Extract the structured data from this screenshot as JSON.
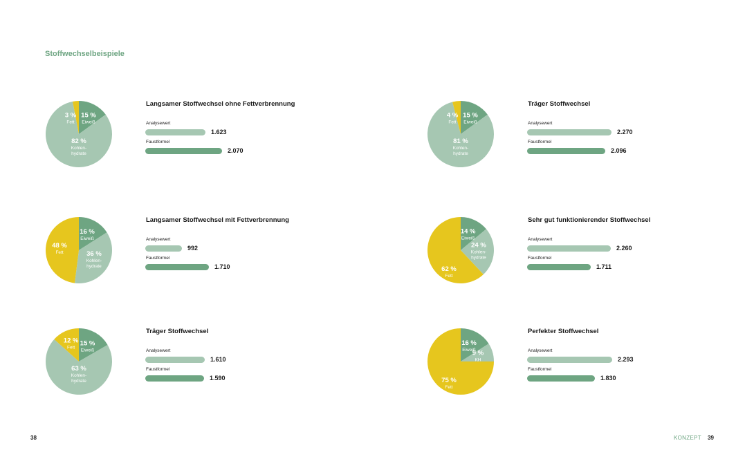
{
  "page": {
    "title": "Stoffwechselbeispiele",
    "folio_left": "38",
    "folio_right": "39",
    "section_label": "KONZEPT"
  },
  "colors": {
    "eiweiss": "#6ea582",
    "kohlenhydrate": "#a6c7b2",
    "fett": "#e6c61e",
    "analysewert_bar": "#a6c7b2",
    "faustformel_bar": "#6ea582",
    "title": "#6ea582"
  },
  "chart_data": [
    {
      "type": "pie",
      "title": "Langsamer Stoffwechsel ohne Fettverbrennung",
      "slices": [
        {
          "key": "eiweiss",
          "pct": 15,
          "value_label": "15 %",
          "name_lines": [
            "Eiweiß"
          ]
        },
        {
          "key": "kohlenhydrate",
          "pct": 82,
          "value_label": "82 %",
          "name_lines": [
            "Kohlen-",
            "hydrate"
          ]
        },
        {
          "key": "fett",
          "pct": 3,
          "value_label": "3 %",
          "name_lines": [
            "Fett"
          ]
        }
      ],
      "bars": [
        {
          "label": "Analysewert",
          "value": 1623,
          "value_label": "1.623"
        },
        {
          "label": "Faustformel",
          "value": 2070,
          "value_label": "2.070"
        }
      ]
    },
    {
      "type": "pie",
      "title": "Langsamer Stoffwechsel mit Fettverbrennung",
      "slices": [
        {
          "key": "eiweiss",
          "pct": 16,
          "value_label": "16 %",
          "name_lines": [
            "Eiweiß"
          ]
        },
        {
          "key": "kohlenhydrate",
          "pct": 36,
          "value_label": "36 %",
          "name_lines": [
            "Kohlen-",
            "hydrate"
          ]
        },
        {
          "key": "fett",
          "pct": 48,
          "value_label": "48 %",
          "name_lines": [
            "Fett"
          ]
        }
      ],
      "bars": [
        {
          "label": "Analysewert",
          "value": 992,
          "value_label": "992"
        },
        {
          "label": "Faustformel",
          "value": 1710,
          "value_label": "1.710"
        }
      ]
    },
    {
      "type": "pie",
      "title": "Träger Stoffwechsel",
      "slices": [
        {
          "key": "eiweiss",
          "pct": 15,
          "value_label": "15 %",
          "name_lines": [
            "Eiweiß"
          ]
        },
        {
          "key": "kohlenhydrate",
          "pct": 63,
          "value_label": "63 %",
          "name_lines": [
            "Kohlen-",
            "hydrate"
          ]
        },
        {
          "key": "fett",
          "pct": 12,
          "value_label": "12 %",
          "name_lines": [
            "Fett"
          ]
        }
      ],
      "bars": [
        {
          "label": "Analysewert",
          "value": 1610,
          "value_label": "1.610"
        },
        {
          "label": "Faustformel",
          "value": 1590,
          "value_label": "1.590"
        }
      ]
    },
    {
      "type": "pie",
      "title": "Träger Stoffwechsel",
      "slices": [
        {
          "key": "eiweiss",
          "pct": 15,
          "value_label": "15 %",
          "name_lines": [
            "Eiweiß"
          ]
        },
        {
          "key": "kohlenhydrate",
          "pct": 81,
          "value_label": "81 %",
          "name_lines": [
            "Kohlen-",
            "hydrate"
          ]
        },
        {
          "key": "fett",
          "pct": 4,
          "value_label": "4 %",
          "name_lines": [
            "Fett"
          ]
        }
      ],
      "bars": [
        {
          "label": "Analysewert",
          "value": 2270,
          "value_label": "2.270"
        },
        {
          "label": "Faustformel",
          "value": 2096,
          "value_label": "2.096"
        }
      ]
    },
    {
      "type": "pie",
      "title": "Sehr gut funktionierender Stoffwechsel",
      "slices": [
        {
          "key": "eiweiss",
          "pct": 14,
          "value_label": "14 %",
          "name_lines": [
            "Eiweiß"
          ]
        },
        {
          "key": "kohlenhydrate",
          "pct": 24,
          "value_label": "24 %",
          "name_lines": [
            "Kohlen-",
            "hydrate"
          ]
        },
        {
          "key": "fett",
          "pct": 62,
          "value_label": "62 %",
          "name_lines": [
            "Fett"
          ]
        }
      ],
      "bars": [
        {
          "label": "Analysewert",
          "value": 2260,
          "value_label": "2.260"
        },
        {
          "label": "Faustformel",
          "value": 1711,
          "value_label": "1.711"
        }
      ]
    },
    {
      "type": "pie",
      "title": "Perfekter Stoffwechsel",
      "slices": [
        {
          "key": "eiweiss",
          "pct": 16,
          "value_label": "16 %",
          "name_lines": [
            "Eiweiß"
          ]
        },
        {
          "key": "kohlenhydrate",
          "pct": 9,
          "value_label": "9 %",
          "name_lines": [
            "KH"
          ]
        },
        {
          "key": "fett",
          "pct": 75,
          "value_label": "75 %",
          "name_lines": [
            "Fett"
          ]
        }
      ],
      "bars": [
        {
          "label": "Analysewert",
          "value": 2293,
          "value_label": "2.293"
        },
        {
          "label": "Faustformel",
          "value": 1830,
          "value_label": "1.830"
        }
      ]
    }
  ]
}
